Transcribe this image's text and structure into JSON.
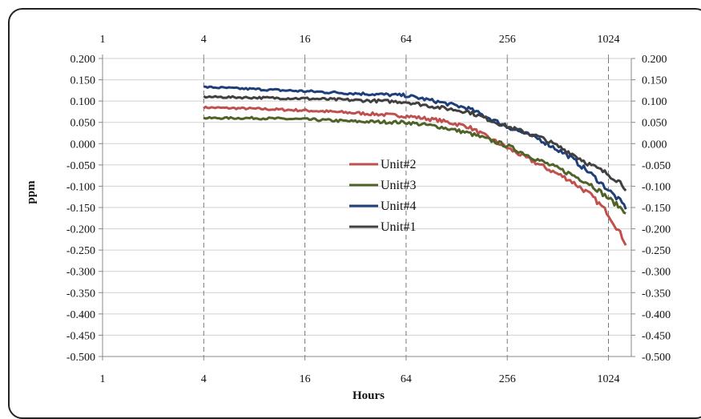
{
  "chart_data": {
    "type": "line",
    "xlabel": "Hours",
    "ylabel": "ppm",
    "x_scale": "log2",
    "xlim": [
      1,
      1400
    ],
    "ylim": [
      -0.5,
      0.2
    ],
    "x_ticks": [
      1,
      4,
      16,
      64,
      256,
      1024
    ],
    "x_tick_labels": [
      "1",
      "4",
      "16",
      "64",
      "256",
      "1024"
    ],
    "y_ticks": [
      0.2,
      0.15,
      0.1,
      0.05,
      0.0,
      -0.05,
      -0.1,
      -0.15,
      -0.2,
      -0.25,
      -0.3,
      -0.35,
      -0.4,
      -0.45,
      -0.5
    ],
    "y_tick_labels": [
      "0.200",
      "0.150",
      "0.100",
      "0.050",
      "0.000",
      "-0.050",
      "-0.100",
      "-0.150",
      "-0.200",
      "-0.250",
      "-0.300",
      "-0.350",
      "-0.400",
      "-0.450",
      "-0.500"
    ],
    "grid": {
      "horizontal": true,
      "vertical": "dashed at major x ticks"
    },
    "legend_position": "center",
    "series": [
      {
        "name": "Unit#2",
        "color": "#c0504d",
        "x": [
          4,
          8,
          16,
          32,
          64,
          100,
          150,
          256,
          400,
          600,
          800,
          1000,
          1200,
          1300
        ],
        "y": [
          0.085,
          0.082,
          0.078,
          0.072,
          0.065,
          0.055,
          0.04,
          -0.01,
          -0.05,
          -0.085,
          -0.12,
          -0.16,
          -0.21,
          -0.235
        ]
      },
      {
        "name": "Unit#3",
        "color": "#4f6228",
        "x": [
          4,
          8,
          16,
          32,
          64,
          100,
          150,
          256,
          400,
          600,
          800,
          1000,
          1200,
          1300
        ],
        "y": [
          0.06,
          0.06,
          0.057,
          0.052,
          0.05,
          0.04,
          0.025,
          -0.005,
          -0.04,
          -0.07,
          -0.095,
          -0.125,
          -0.15,
          -0.16
        ]
      },
      {
        "name": "Unit#4",
        "color": "#1f3f7a",
        "x": [
          4,
          8,
          16,
          32,
          64,
          100,
          150,
          256,
          400,
          600,
          800,
          1000,
          1200,
          1300
        ],
        "y": [
          0.133,
          0.128,
          0.123,
          0.118,
          0.113,
          0.098,
          0.083,
          0.04,
          0.01,
          -0.03,
          -0.07,
          -0.105,
          -0.135,
          -0.15
        ]
      },
      {
        "name": "Unit#1",
        "color": "#404040",
        "x": [
          4,
          8,
          16,
          32,
          64,
          100,
          150,
          256,
          400,
          600,
          800,
          1000,
          1200,
          1300
        ],
        "y": [
          0.11,
          0.108,
          0.106,
          0.102,
          0.098,
          0.085,
          0.075,
          0.04,
          0.015,
          -0.02,
          -0.05,
          -0.07,
          -0.09,
          -0.105
        ]
      }
    ],
    "legend_order": [
      "Unit#2",
      "Unit#3",
      "Unit#4",
      "Unit#1"
    ]
  }
}
